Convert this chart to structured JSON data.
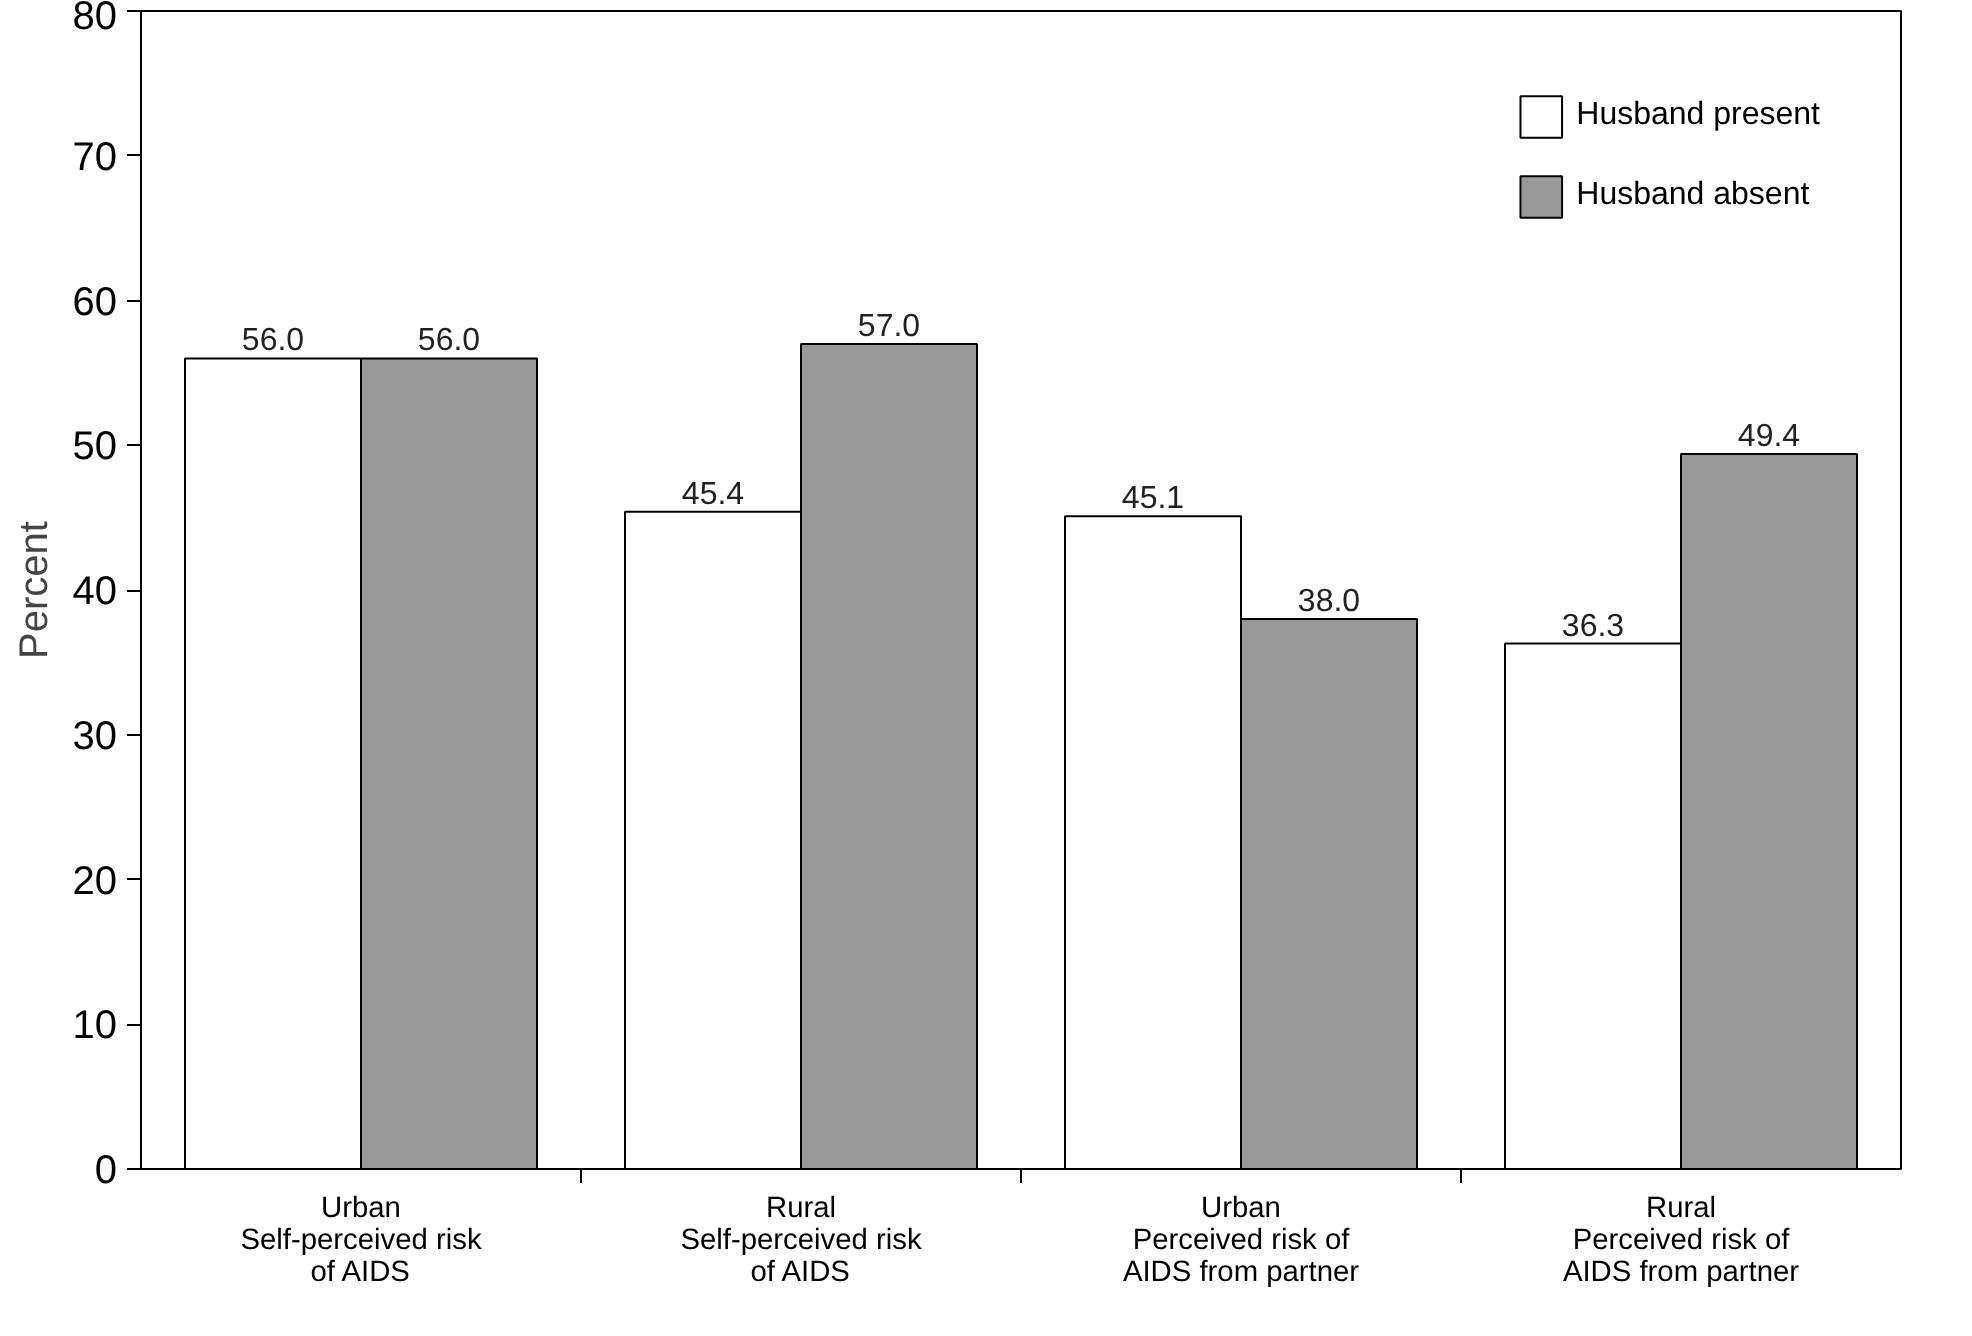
{
  "chart_data": {
    "type": "bar",
    "ylabel": "Percent",
    "categories": [
      "Urban\nSelf-perceived risk\nof AIDS",
      "Rural\nSelf-perceived risk\nof AIDS",
      "Urban\nPerceived risk of\nAIDS from partner",
      "Rural\nPerceived risk of\nAIDS from partner"
    ],
    "series": [
      {
        "name": "Husband present",
        "color": "#ffffff",
        "values": [
          56.0,
          45.4,
          45.1,
          36.3
        ],
        "value_labels": [
          "56.0",
          "45.4",
          "45.1",
          "36.3"
        ]
      },
      {
        "name": "Husband absent",
        "color": "#999999",
        "values": [
          56.0,
          57.0,
          38.0,
          49.4
        ],
        "value_labels": [
          "56.0",
          "57.0",
          "38.0",
          "49.4"
        ]
      }
    ],
    "ylim": [
      0,
      80
    ],
    "yticks": [
      0,
      10,
      20,
      30,
      40,
      50,
      60,
      70,
      80
    ],
    "grid": false,
    "legend": "top right"
  }
}
